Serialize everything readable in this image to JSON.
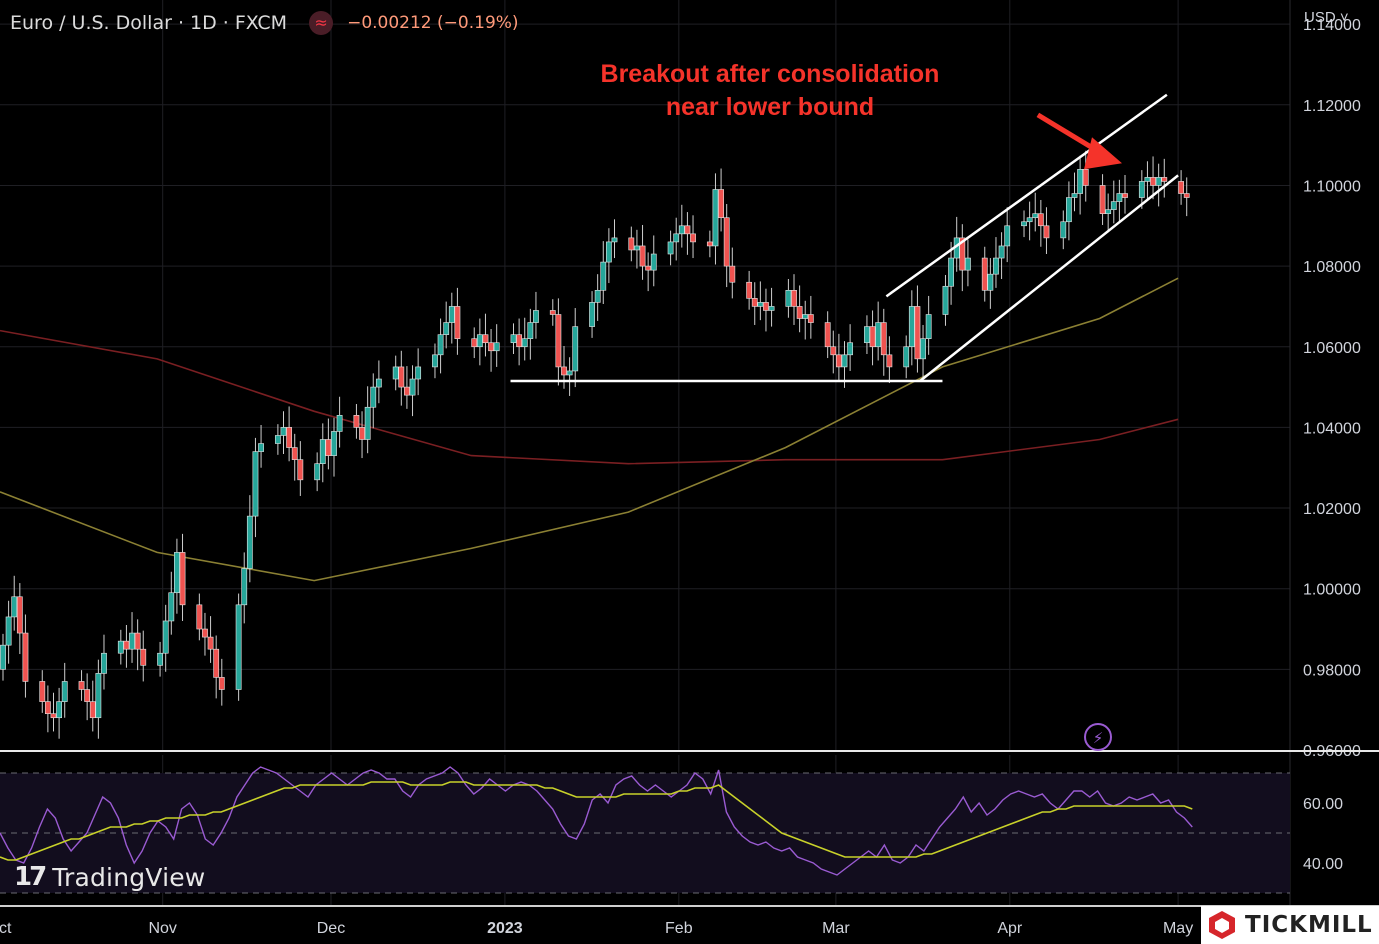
{
  "header": {
    "symbol": "Euro / U.S. Dollar · 1D · FXCM",
    "indicator_icon": "wave-icon",
    "change": "−0.00212 (−0.19%)"
  },
  "currency_selector": "USD ˅",
  "annotation": {
    "line1": "Breakout after consolidation",
    "line2": "near lower bound"
  },
  "branding": {
    "tradingview": "TradingView",
    "tickmill": "TICKMILL"
  },
  "colors": {
    "up": "#26a69a",
    "down": "#ef5350",
    "ma_slow": "#7a1f22",
    "ma_mid": "#8b8033",
    "rsi": "#9a5bd2",
    "rsi_ma": "#c8d12a",
    "annotation": "#f5332a"
  },
  "chart_data": [
    {
      "type": "candlestick",
      "ylim": [
        0.96,
        1.145
      ],
      "y_tick_labels": [
        "1.14000",
        "1.12000",
        "1.10000",
        "1.08000",
        "1.06000",
        "1.04000",
        "1.02000",
        "1.00000",
        "0.98000",
        "0.96000"
      ],
      "x_tick_labels": [
        "ct",
        "Nov",
        "Dec",
        "2023",
        "Feb",
        "Mar",
        "Apr",
        "May"
      ],
      "x_range": [
        "2022-10-03",
        "2023-05-29"
      ],
      "candles_anchor": [
        "2022-10-03",
        0.98
      ],
      "candles_close": [
        0.986,
        0.993,
        0.998,
        0.989,
        0.977,
        0.972,
        0.969,
        0.968,
        0.972,
        0.977,
        0.975,
        0.972,
        0.968,
        0.979,
        0.984,
        0.987,
        0.985,
        0.989,
        0.985,
        0.981,
        0.984,
        0.992,
        0.999,
        1.009,
        0.996,
        0.99,
        0.988,
        0.985,
        0.978,
        0.975,
        0.996,
        1.005,
        1.018,
        1.034,
        1.036,
        1.038,
        1.04,
        1.035,
        1.032,
        1.027,
        1.031,
        1.037,
        1.033,
        1.039,
        1.043,
        1.04,
        1.037,
        1.045,
        1.05,
        1.052,
        1.055,
        1.05,
        1.048,
        1.052,
        1.055,
        1.058,
        1.063,
        1.066,
        1.07,
        1.062,
        1.06,
        1.063,
        1.061,
        1.059,
        1.061,
        1.063,
        1.06,
        1.062,
        1.066,
        1.069,
        1.068,
        1.055,
        1.053,
        1.054,
        1.065,
        1.071,
        1.074,
        1.081,
        1.086,
        1.087,
        1.084,
        1.085,
        1.08,
        1.079,
        1.083,
        1.086,
        1.088,
        1.09,
        1.088,
        1.086,
        1.085,
        1.099,
        1.092,
        1.08,
        1.076,
        1.072,
        1.07,
        1.071,
        1.069,
        1.07,
        1.074,
        1.07,
        1.067,
        1.068,
        1.066,
        1.06,
        1.058,
        1.055,
        1.058,
        1.061,
        1.065,
        1.06,
        1.066,
        1.058,
        1.055,
        1.06,
        1.07,
        1.057,
        1.062,
        1.068,
        1.075,
        1.082,
        1.087,
        1.079,
        1.082,
        1.074,
        1.078,
        1.082,
        1.085,
        1.09,
        1.091,
        1.092,
        1.093,
        1.09,
        1.087,
        1.091,
        1.097,
        1.098,
        1.104,
        1.1,
        1.093,
        1.094,
        1.096,
        1.098,
        1.097,
        1.101,
        1.102,
        1.1,
        1.102,
        1.101,
        1.098,
        1.097
      ],
      "moving_averages": [
        {
          "x": [
            "2022-10-03",
            "2022-10-31",
            "2022-11-28",
            "2022-12-26",
            "2023-01-23",
            "2023-02-20",
            "2023-03-20",
            "2023-04-17",
            "2023-05-01"
          ],
          "values": [
            1.064,
            1.057,
            1.044,
            1.033,
            1.031,
            1.032,
            1.032,
            1.037,
            1.042
          ]
        },
        {
          "x": [
            "2022-10-03",
            "2022-10-31",
            "2022-11-28",
            "2022-12-26",
            "2023-01-23",
            "2023-02-20",
            "2023-03-20",
            "2023-04-17",
            "2023-05-01"
          ],
          "values": [
            1.024,
            1.009,
            1.002,
            1.01,
            1.019,
            1.035,
            1.055,
            1.067,
            1.077
          ]
        }
      ],
      "trendlines": [
        {
          "x": [
            "2023-01-02",
            "2023-03-20"
          ],
          "y": [
            1.0515,
            1.0515
          ]
        },
        {
          "x": [
            "2023-03-10",
            "2023-04-29"
          ],
          "y": [
            1.0725,
            1.1225
          ]
        },
        {
          "x": [
            "2023-03-16",
            "2023-05-01"
          ],
          "y": [
            1.0515,
            1.1025
          ]
        }
      ],
      "annotation_arrow": {
        "from": [
          "2023-04-06",
          1.1175
        ],
        "to": [
          "2023-04-21",
          1.1055
        ]
      }
    },
    {
      "type": "line",
      "name": "RSI",
      "ylim": [
        26,
        76
      ],
      "y_tick_labels": [
        "60.00",
        "40.00"
      ],
      "levels": [
        70,
        50,
        30
      ],
      "x_range": [
        "2022-10-03",
        "2023-05-03"
      ],
      "rsi": [
        50,
        45,
        41,
        40,
        45,
        52,
        58,
        55,
        48,
        44,
        47,
        50,
        56,
        62,
        60,
        55,
        46,
        40,
        44,
        50,
        54,
        52,
        48,
        58,
        60,
        56,
        48,
        46,
        50,
        55,
        62,
        66,
        70,
        72,
        71,
        70,
        68,
        66,
        64,
        62,
        66,
        68,
        70,
        68,
        66,
        68,
        70,
        71,
        70,
        68,
        68,
        64,
        62,
        66,
        68,
        69,
        70,
        72,
        70,
        66,
        63,
        65,
        68,
        66,
        64,
        66,
        67,
        66,
        64,
        61,
        58,
        53,
        49,
        48,
        53,
        61,
        63,
        60,
        66,
        68,
        69,
        66,
        64,
        66,
        64,
        62,
        64,
        66,
        70,
        68,
        63,
        71,
        57,
        52,
        49,
        47,
        46,
        47,
        45,
        44,
        45,
        42,
        41,
        40,
        38,
        37,
        36,
        38,
        40,
        42,
        44,
        42,
        46,
        41,
        40,
        42,
        46,
        44,
        48,
        52,
        55,
        58,
        62,
        57,
        60,
        56,
        58,
        61,
        63,
        64,
        63,
        62,
        63,
        60,
        58,
        61,
        64,
        64,
        62,
        64,
        60,
        59,
        60,
        62,
        61,
        62,
        63,
        60,
        61,
        57,
        55,
        52
      ],
      "rsi_ma": [
        42,
        41,
        41,
        42,
        43,
        44,
        45,
        46,
        47,
        48,
        48,
        49,
        50,
        51,
        52,
        52,
        52,
        53,
        53,
        54,
        54,
        55,
        55,
        55,
        56,
        56,
        56,
        57,
        57,
        58,
        59,
        60,
        61,
        62,
        63,
        64,
        65,
        65,
        66,
        66,
        66,
        66,
        66,
        66,
        66,
        66,
        66,
        67,
        67,
        67,
        67,
        67,
        66,
        66,
        66,
        66,
        66,
        67,
        67,
        67,
        66,
        66,
        66,
        66,
        66,
        66,
        66,
        66,
        66,
        65,
        65,
        64,
        63,
        62,
        62,
        62,
        62,
        62,
        62,
        63,
        63,
        63,
        63,
        63,
        63,
        63,
        64,
        64,
        65,
        65,
        65,
        66,
        64,
        62,
        60,
        58,
        56,
        54,
        52,
        50,
        49,
        48,
        47,
        46,
        45,
        44,
        43,
        42,
        42,
        42,
        42,
        42,
        42,
        42,
        42,
        42,
        42,
        43,
        43,
        44,
        45,
        46,
        47,
        48,
        49,
        50,
        51,
        52,
        53,
        54,
        55,
        56,
        57,
        57,
        58,
        58,
        59,
        59,
        59,
        59,
        59,
        59,
        59,
        59,
        59,
        59,
        59,
        59,
        59,
        59,
        59,
        58
      ]
    }
  ]
}
